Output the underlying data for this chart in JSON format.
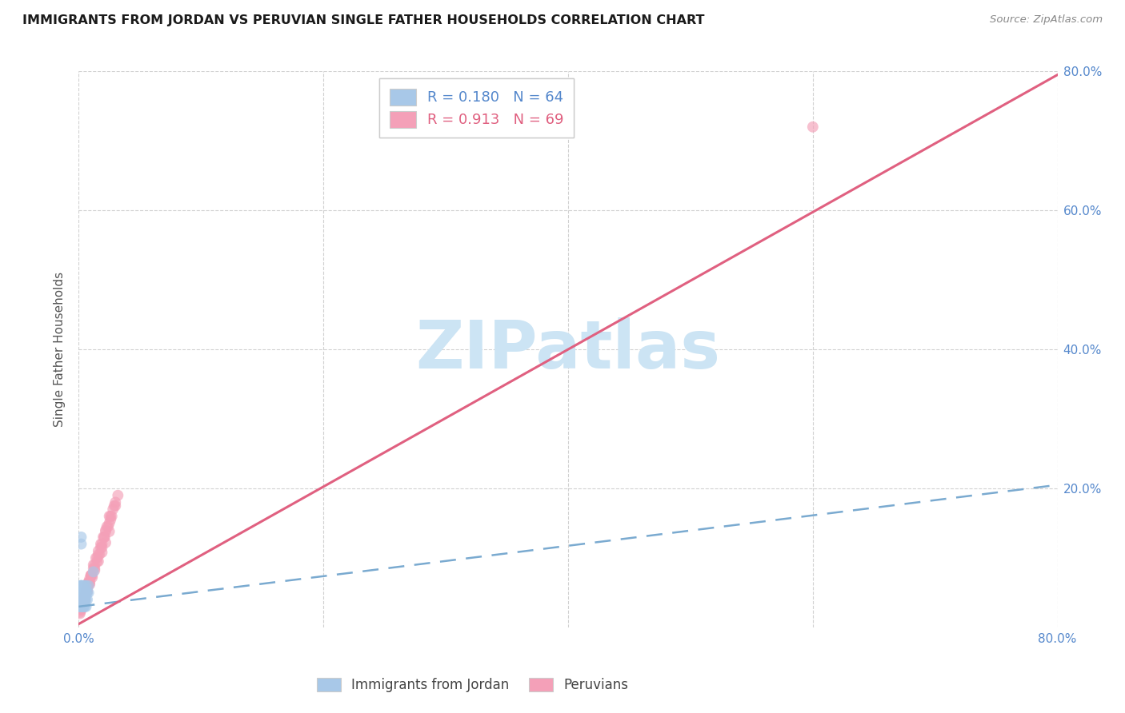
{
  "title": "IMMIGRANTS FROM JORDAN VS PERUVIAN SINGLE FATHER HOUSEHOLDS CORRELATION CHART",
  "source": "Source: ZipAtlas.com",
  "ylabel": "Single Father Households",
  "xlim": [
    0.0,
    0.8
  ],
  "ylim": [
    0.0,
    0.8
  ],
  "xtick_vals": [
    0.0,
    0.2,
    0.4,
    0.6,
    0.8
  ],
  "xtick_labels": [
    "0.0%",
    "",
    "",
    "",
    "80.0%"
  ],
  "ytick_vals": [
    0.2,
    0.4,
    0.6,
    0.8
  ],
  "ytick_labels": [
    "20.0%",
    "40.0%",
    "60.0%",
    "80.0%"
  ],
  "legend_r_jordan": "0.180",
  "legend_n_jordan": "64",
  "legend_r_peruvian": "0.913",
  "legend_n_peruvian": "69",
  "jordan_color": "#a8c8e8",
  "peruvian_color": "#f4a0b8",
  "jordan_line_color": "#7aaad0",
  "peruvian_line_color": "#e06080",
  "watermark_text": "ZIPatlas",
  "watermark_color": "#cce4f4",
  "background_color": "#ffffff",
  "grid_color": "#cccccc",
  "jordan_scatter_x": [
    0.002,
    0.003,
    0.004,
    0.005,
    0.001,
    0.006,
    0.007,
    0.002,
    0.003,
    0.008,
    0.004,
    0.005,
    0.006,
    0.002,
    0.003,
    0.004,
    0.001,
    0.003,
    0.005,
    0.007,
    0.002,
    0.004,
    0.003,
    0.006,
    0.002,
    0.003,
    0.002,
    0.004,
    0.003,
    0.002,
    0.001,
    0.002,
    0.003,
    0.004,
    0.005,
    0.001,
    0.002,
    0.003,
    0.004,
    0.006,
    0.002,
    0.003,
    0.001,
    0.002,
    0.004,
    0.005,
    0.003,
    0.002,
    0.001,
    0.003,
    0.004,
    0.002,
    0.003,
    0.005,
    0.002,
    0.003,
    0.012,
    0.008,
    0.006,
    0.004,
    0.003,
    0.002,
    0.001,
    0.002
  ],
  "jordan_scatter_y": [
    0.05,
    0.04,
    0.06,
    0.05,
    0.03,
    0.04,
    0.05,
    0.06,
    0.04,
    0.05,
    0.03,
    0.04,
    0.06,
    0.05,
    0.04,
    0.03,
    0.04,
    0.05,
    0.03,
    0.04,
    0.12,
    0.05,
    0.04,
    0.03,
    0.05,
    0.04,
    0.06,
    0.05,
    0.03,
    0.04,
    0.03,
    0.05,
    0.04,
    0.05,
    0.06,
    0.04,
    0.05,
    0.03,
    0.04,
    0.05,
    0.06,
    0.04,
    0.05,
    0.03,
    0.04,
    0.05,
    0.06,
    0.04,
    0.03,
    0.05,
    0.04,
    0.06,
    0.05,
    0.04,
    0.03,
    0.05,
    0.08,
    0.06,
    0.05,
    0.04,
    0.05,
    0.06,
    0.04,
    0.13
  ],
  "peruvian_scatter_x": [
    0.001,
    0.002,
    0.003,
    0.004,
    0.005,
    0.006,
    0.007,
    0.008,
    0.009,
    0.01,
    0.012,
    0.014,
    0.016,
    0.018,
    0.02,
    0.022,
    0.025,
    0.028,
    0.03,
    0.032,
    0.001,
    0.003,
    0.005,
    0.007,
    0.009,
    0.011,
    0.013,
    0.015,
    0.017,
    0.019,
    0.021,
    0.023,
    0.026,
    0.029,
    0.002,
    0.004,
    0.006,
    0.008,
    0.01,
    0.012,
    0.015,
    0.018,
    0.021,
    0.024,
    0.027,
    0.001,
    0.003,
    0.005,
    0.007,
    0.009,
    0.011,
    0.013,
    0.016,
    0.019,
    0.022,
    0.025,
    0.002,
    0.004,
    0.006,
    0.008,
    0.01,
    0.013,
    0.016,
    0.019,
    0.022,
    0.026,
    0.03,
    0.6,
    0.025
  ],
  "peruvian_scatter_y": [
    0.02,
    0.025,
    0.03,
    0.035,
    0.04,
    0.05,
    0.06,
    0.065,
    0.07,
    0.075,
    0.09,
    0.1,
    0.11,
    0.12,
    0.13,
    0.14,
    0.15,
    0.17,
    0.18,
    0.19,
    0.025,
    0.035,
    0.045,
    0.055,
    0.065,
    0.075,
    0.085,
    0.095,
    0.105,
    0.115,
    0.13,
    0.145,
    0.16,
    0.175,
    0.03,
    0.04,
    0.055,
    0.065,
    0.075,
    0.085,
    0.1,
    0.115,
    0.13,
    0.145,
    0.16,
    0.022,
    0.032,
    0.042,
    0.052,
    0.062,
    0.072,
    0.082,
    0.095,
    0.108,
    0.122,
    0.138,
    0.028,
    0.038,
    0.052,
    0.062,
    0.075,
    0.09,
    0.105,
    0.12,
    0.138,
    0.155,
    0.175,
    0.72,
    0.16
  ],
  "jordan_trendline_x": [
    0.0,
    0.8
  ],
  "jordan_trendline_y": [
    0.03,
    0.205
  ],
  "peruvian_trendline_x": [
    0.0,
    0.8
  ],
  "peruvian_trendline_y": [
    0.005,
    0.795
  ]
}
